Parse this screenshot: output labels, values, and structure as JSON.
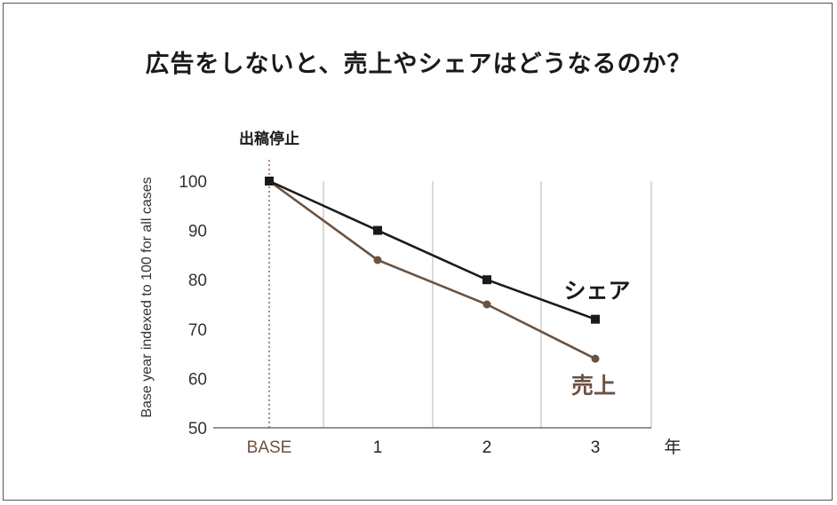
{
  "chart_data": {
    "type": "line",
    "title": "広告をしないと、売上やシェアはどうなるのか？",
    "ylabel": "Base year indexed to 100 for all cases",
    "xlabel": "年",
    "annotation": "出稿停止",
    "categories": [
      "BASE",
      "1",
      "2",
      "3"
    ],
    "ylim": [
      50,
      100
    ],
    "yticks": [
      100,
      90,
      80,
      70,
      60,
      50
    ],
    "grid": "vertical",
    "series": [
      {
        "name": "シェア",
        "values": [
          100,
          90,
          80,
          72
        ],
        "color": "#1a1a1a",
        "marker": "square"
      },
      {
        "name": "売上",
        "values": [
          100,
          84,
          75,
          64
        ],
        "color": "#6b5240",
        "marker": "circle"
      }
    ]
  }
}
